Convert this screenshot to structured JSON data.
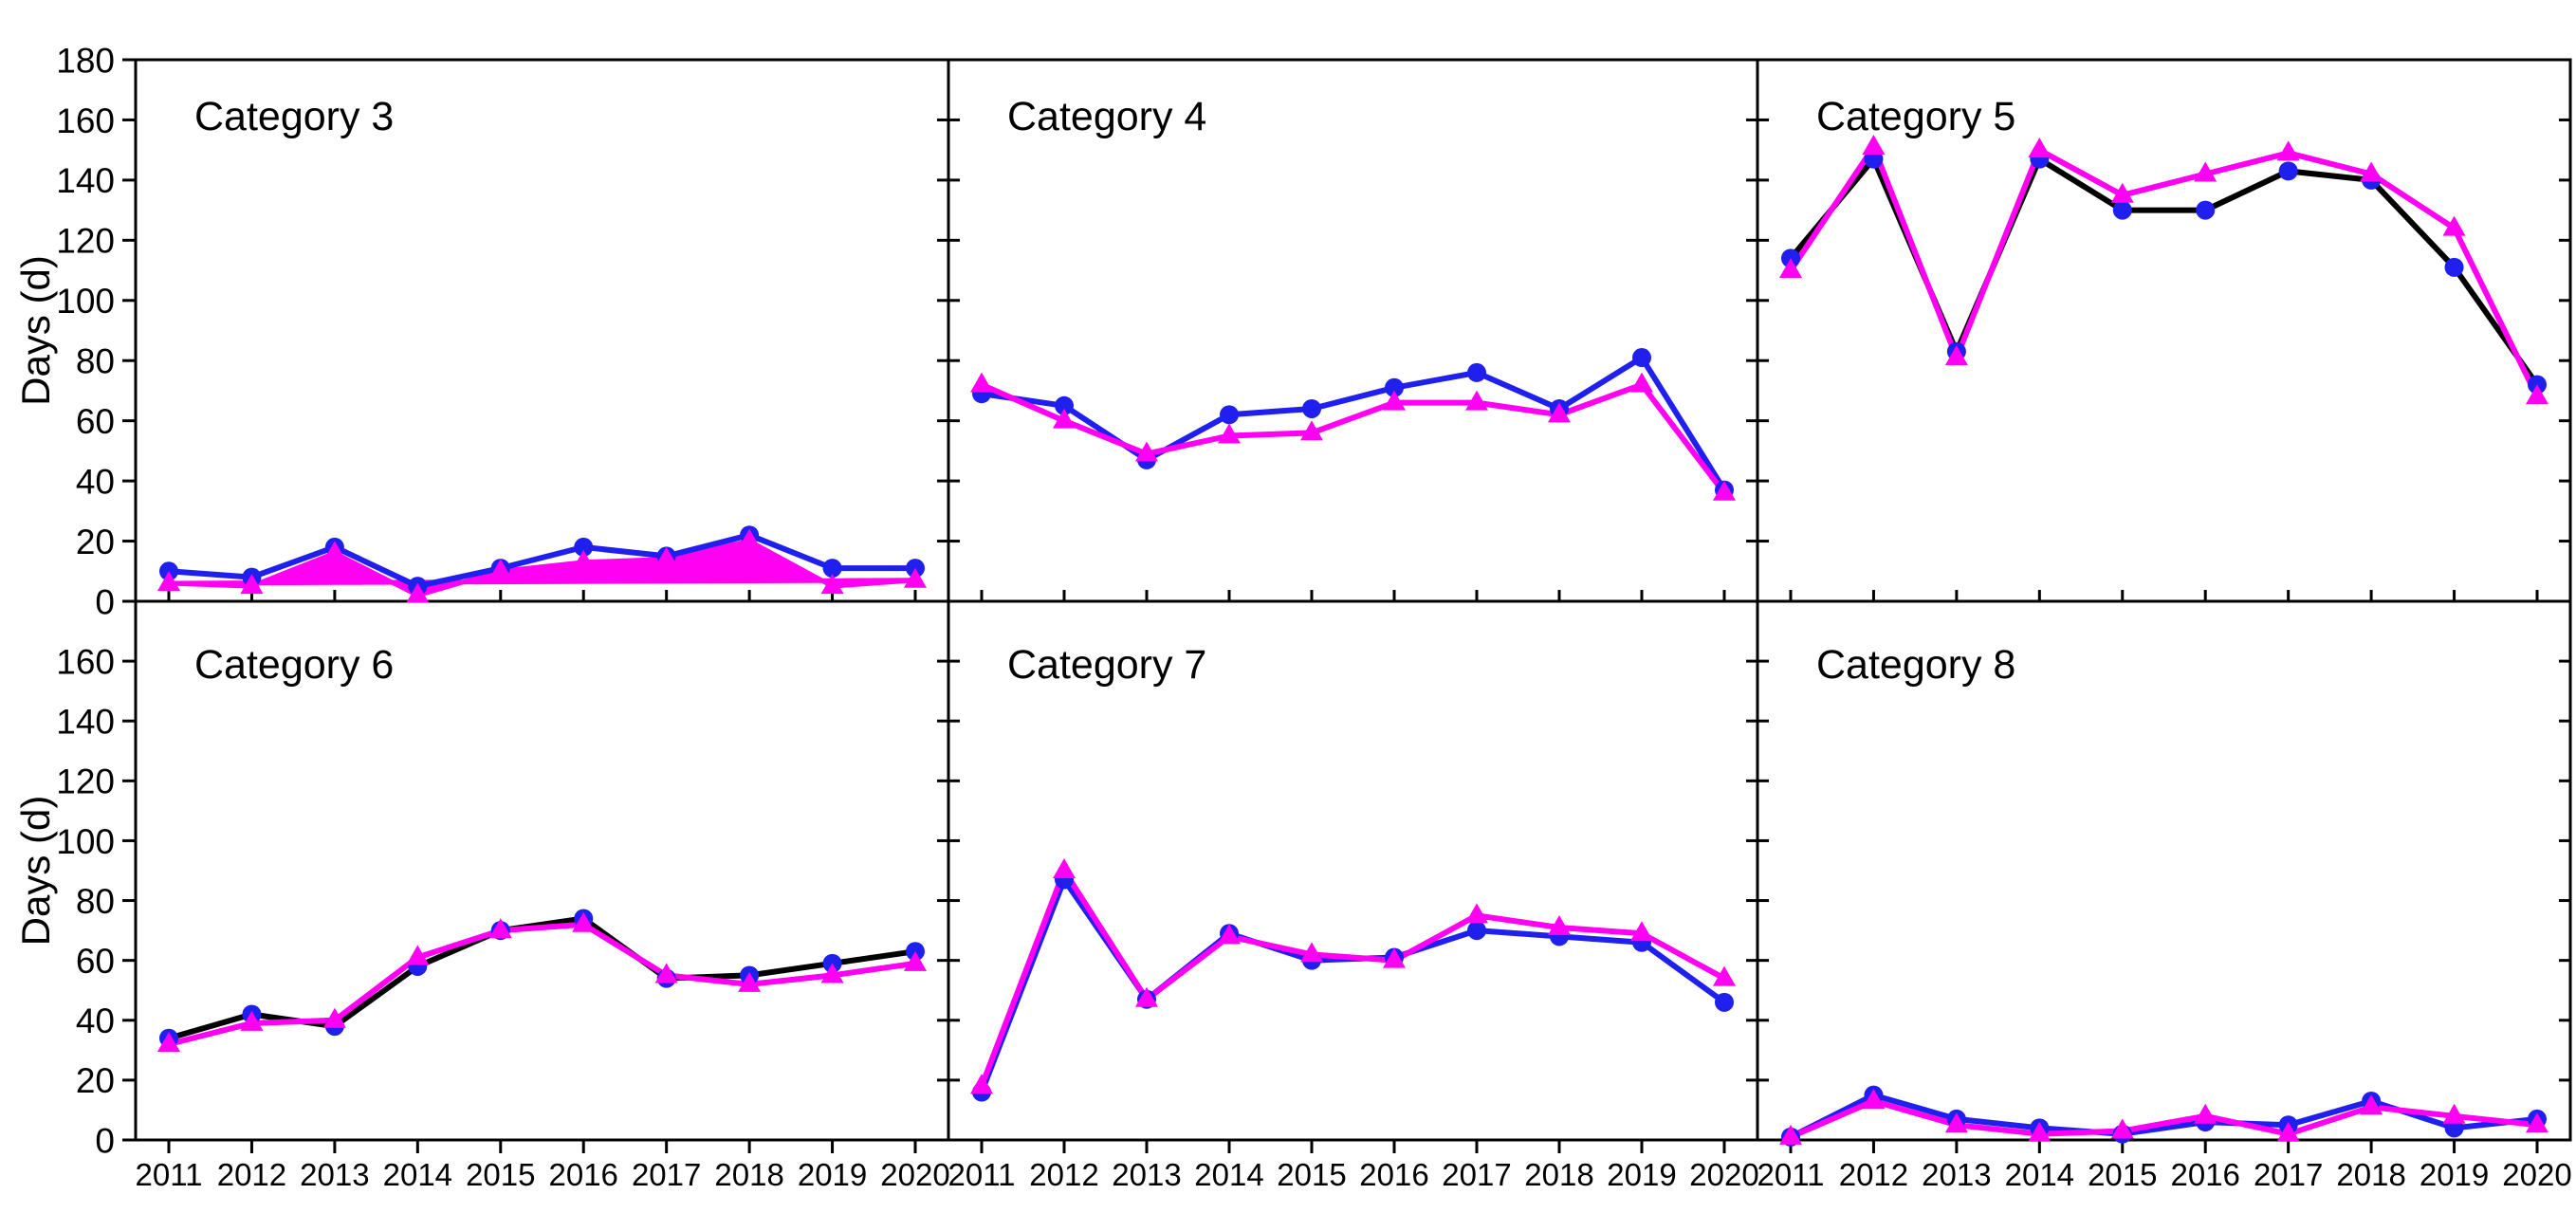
{
  "figure_title": "",
  "axes": {
    "ylabel": "Days (d)",
    "top_row_y_ticks": [
      0,
      20,
      40,
      60,
      80,
      100,
      120,
      140,
      160,
      180
    ],
    "bottom_row_y_ticks": [
      0,
      20,
      40,
      60,
      80,
      100,
      120,
      140,
      160
    ],
    "x_tick_labels": [
      "2011",
      "2012",
      "2013",
      "2014",
      "2015",
      "2016",
      "2017",
      "2018",
      "2019",
      "2020"
    ],
    "grid": "off",
    "legend": "none"
  },
  "colors": {
    "blue": "#1f1fee",
    "magenta": "#ff00f2",
    "black": "#000000",
    "frame": "#000000",
    "background": "#ffffff"
  },
  "chart_data": [
    {
      "type": "line",
      "title": "Category 3",
      "row": 0,
      "col": 0,
      "categories": [
        "2011",
        "2012",
        "2013",
        "2014",
        "2015",
        "2016",
        "2017",
        "2018",
        "2019",
        "2020"
      ],
      "xlabel": "",
      "ylabel": "Days (d)",
      "ylim": [
        0,
        180
      ],
      "series": [
        {
          "name": "circles",
          "marker": "circle",
          "line_color_key": "blue",
          "marker_color_key": "blue",
          "values": [
            10,
            8,
            18,
            5,
            11,
            18,
            15,
            22,
            11,
            11
          ]
        },
        {
          "name": "triangles",
          "marker": "triangle",
          "line_color_key": "magenta",
          "marker_color_key": "magenta",
          "fill_polygon": true,
          "values": [
            6,
            5,
            16,
            2,
            10,
            13,
            14,
            20,
            5,
            7
          ]
        }
      ]
    },
    {
      "type": "line",
      "title": "Category 4",
      "row": 0,
      "col": 1,
      "categories": [
        "2011",
        "2012",
        "2013",
        "2014",
        "2015",
        "2016",
        "2017",
        "2018",
        "2019",
        "2020"
      ],
      "xlabel": "",
      "ylabel": "Days (d)",
      "ylim": [
        0,
        180
      ],
      "series": [
        {
          "name": "circles",
          "marker": "circle",
          "line_color_key": "blue",
          "marker_color_key": "blue",
          "values": [
            69,
            65,
            47,
            62,
            64,
            71,
            76,
            64,
            81,
            37
          ]
        },
        {
          "name": "triangles",
          "marker": "triangle",
          "line_color_key": "magenta",
          "marker_color_key": "magenta",
          "fill_polygon": false,
          "values": [
            72,
            60,
            49,
            55,
            56,
            66,
            66,
            62,
            72,
            36
          ]
        }
      ]
    },
    {
      "type": "line",
      "title": "Category 5",
      "row": 0,
      "col": 2,
      "categories": [
        "2011",
        "2012",
        "2013",
        "2014",
        "2015",
        "2016",
        "2017",
        "2018",
        "2019",
        "2020"
      ],
      "xlabel": "",
      "ylabel": "Days (d)",
      "ylim": [
        0,
        180
      ],
      "series": [
        {
          "name": "circles",
          "marker": "circle",
          "line_color_key": "black",
          "marker_color_key": "blue",
          "values": [
            114,
            147,
            83,
            147,
            130,
            130,
            143,
            140,
            111,
            72
          ]
        },
        {
          "name": "triangles",
          "marker": "triangle",
          "line_color_key": "magenta",
          "marker_color_key": "magenta",
          "fill_polygon": false,
          "values": [
            110,
            151,
            81,
            150,
            135,
            142,
            149,
            142,
            124,
            68
          ]
        }
      ]
    },
    {
      "type": "line",
      "title": "Category 6",
      "row": 1,
      "col": 0,
      "categories": [
        "2011",
        "2012",
        "2013",
        "2014",
        "2015",
        "2016",
        "2017",
        "2018",
        "2019",
        "2020"
      ],
      "xlabel": "",
      "ylabel": "Days (d)",
      "ylim": [
        0,
        180
      ],
      "series": [
        {
          "name": "circles",
          "marker": "circle",
          "line_color_key": "black",
          "marker_color_key": "blue",
          "values": [
            34,
            42,
            38,
            58,
            70,
            74,
            54,
            55,
            59,
            63
          ]
        },
        {
          "name": "triangles",
          "marker": "triangle",
          "line_color_key": "magenta",
          "marker_color_key": "magenta",
          "fill_polygon": false,
          "values": [
            32,
            39,
            40,
            61,
            70,
            72,
            55,
            52,
            55,
            59
          ]
        }
      ]
    },
    {
      "type": "line",
      "title": "Category 7",
      "row": 1,
      "col": 1,
      "categories": [
        "2011",
        "2012",
        "2013",
        "2014",
        "2015",
        "2016",
        "2017",
        "2018",
        "2019",
        "2020"
      ],
      "xlabel": "",
      "ylabel": "Days (d)",
      "ylim": [
        0,
        180
      ],
      "series": [
        {
          "name": "circles",
          "marker": "circle",
          "line_color_key": "blue",
          "marker_color_key": "blue",
          "values": [
            16,
            87,
            47,
            69,
            60,
            61,
            70,
            68,
            66,
            46
          ]
        },
        {
          "name": "triangles",
          "marker": "triangle",
          "line_color_key": "magenta",
          "marker_color_key": "magenta",
          "fill_polygon": false,
          "values": [
            18,
            90,
            47,
            68,
            62,
            60,
            75,
            71,
            69,
            54
          ]
        }
      ]
    },
    {
      "type": "line",
      "title": "Category 8",
      "row": 1,
      "col": 2,
      "categories": [
        "2011",
        "2012",
        "2013",
        "2014",
        "2015",
        "2016",
        "2017",
        "2018",
        "2019",
        "2020"
      ],
      "xlabel": "",
      "ylabel": "Days (d)",
      "ylim": [
        0,
        180
      ],
      "series": [
        {
          "name": "circles",
          "marker": "circle",
          "line_color_key": "blue",
          "marker_color_key": "blue",
          "values": [
            1,
            15,
            7,
            4,
            2,
            6,
            5,
            13,
            4,
            7
          ]
        },
        {
          "name": "triangles",
          "marker": "triangle",
          "line_color_key": "magenta",
          "marker_color_key": "magenta",
          "fill_polygon": false,
          "values": [
            1,
            13,
            5,
            2,
            3,
            8,
            2,
            11,
            8,
            5
          ]
        }
      ]
    }
  ]
}
